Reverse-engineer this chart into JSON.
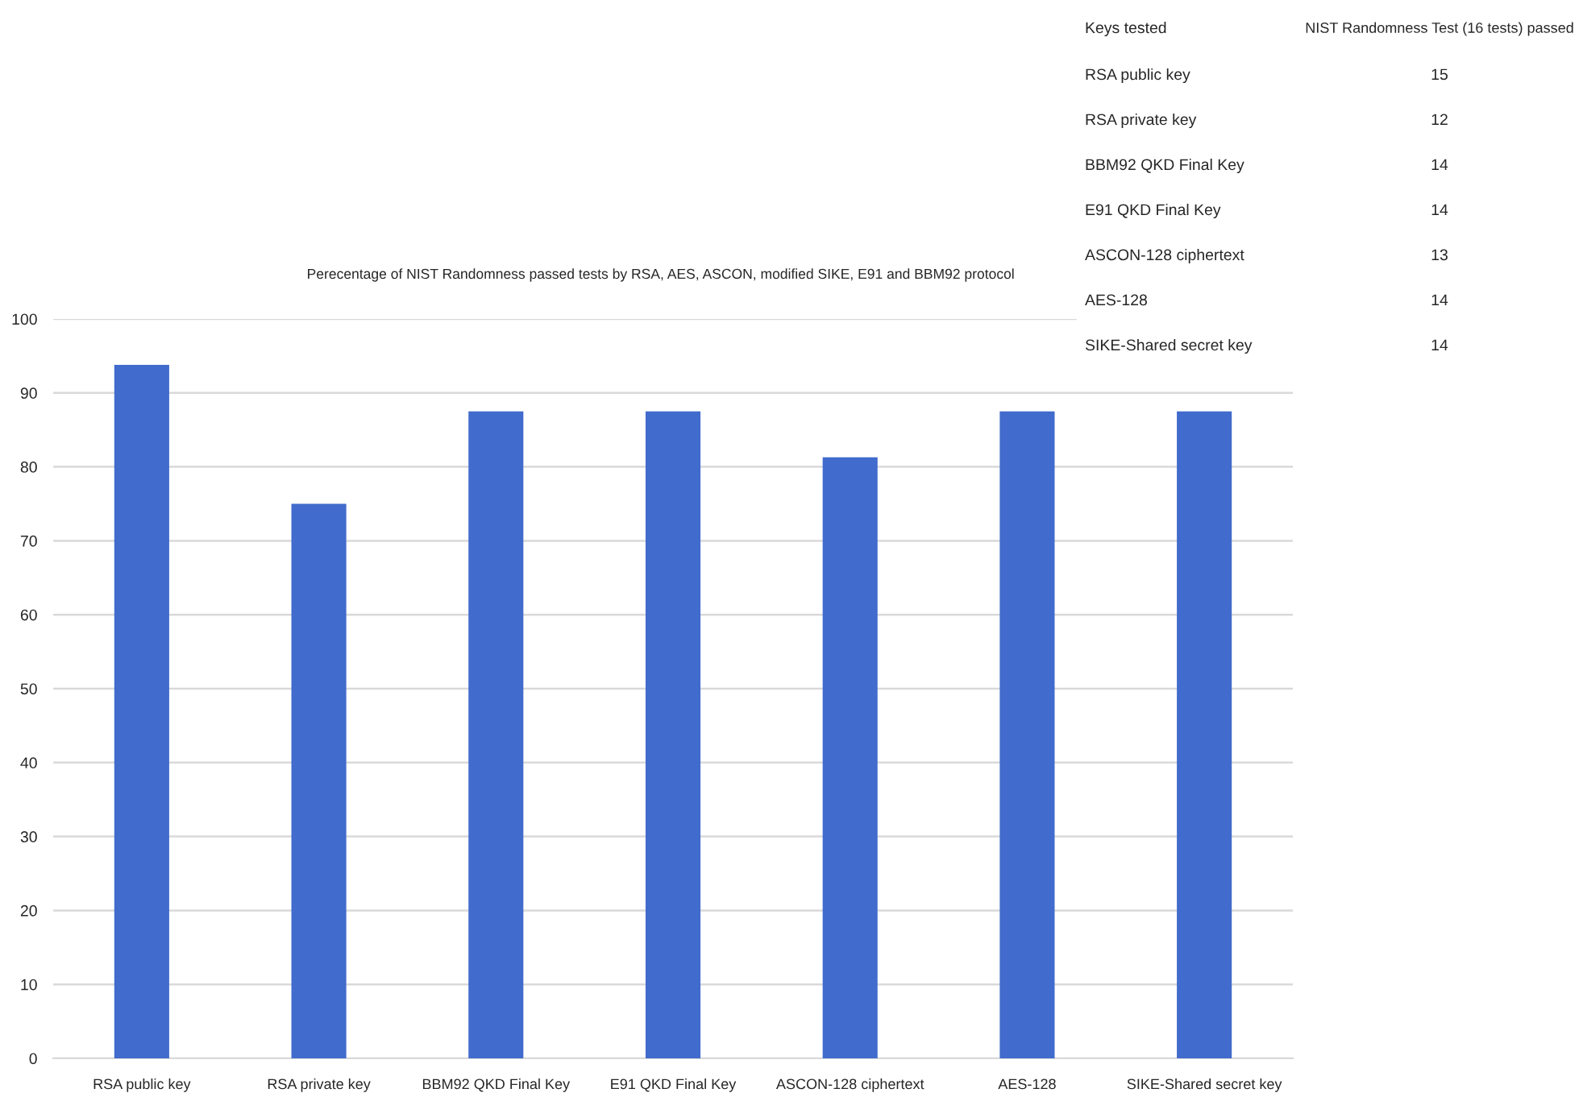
{
  "chart_data": [
    {
      "type": "bar",
      "title": "Perecentage of NIST Randomness passed tests by RSA, AES, ASCON, modified SIKE, E91 and BBM92 protocol",
      "categories": [
        "RSA public key",
        "RSA private key",
        "BBM92 QKD Final Key",
        "E91 QKD Final Key",
        "ASCON-128 ciphertext",
        "AES-128",
        "SIKE-Shared secret key"
      ],
      "values": [
        93.8,
        75,
        87.5,
        87.5,
        81.3,
        87.5,
        87.5
      ],
      "color": "#416bcc",
      "ylim": [
        0,
        100
      ],
      "yticks": [
        0,
        10,
        20,
        30,
        40,
        50,
        60,
        70,
        80,
        90,
        100
      ],
      "grid": "y"
    },
    {
      "type": "other",
      "xlabel": "Keys tested",
      "ylabel": "NIST Randomness Test (16 tests) passed",
      "categories": [
        "RSA public key",
        "RSA private key",
        "BBM92 QKD Final Key",
        "E91 QKD Final Key",
        "ASCON-128 ciphertext",
        "AES-128",
        "SIKE-Shared secret key"
      ],
      "values": [
        15,
        12,
        14,
        14,
        13,
        14,
        14
      ],
      "data_labels": true
    }
  ]
}
